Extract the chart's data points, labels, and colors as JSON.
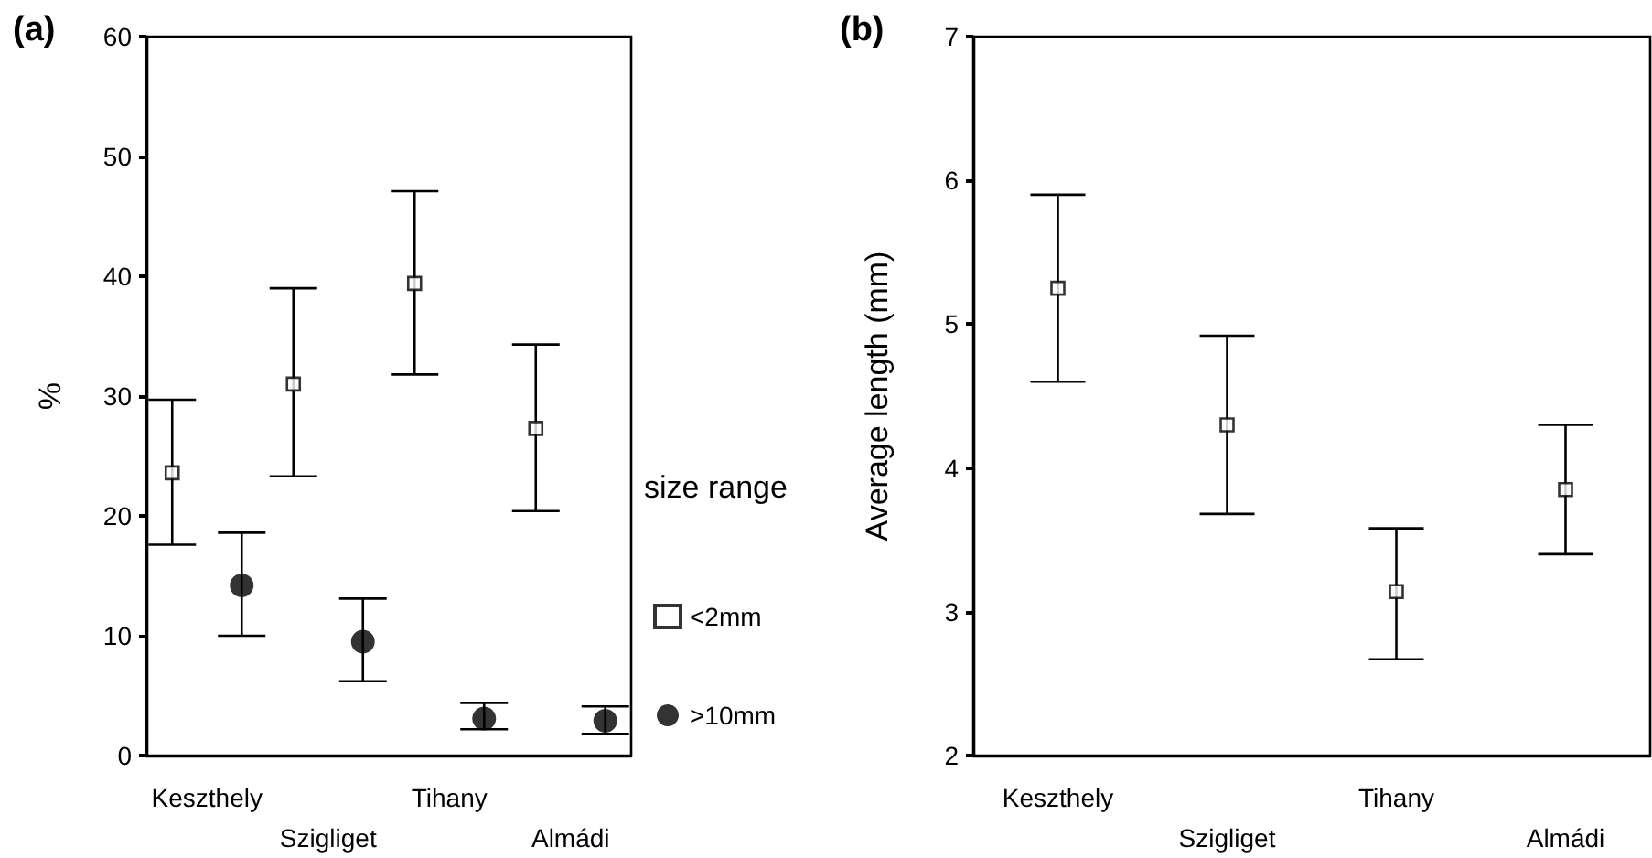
{
  "chart_data": [
    {
      "type": "scatter",
      "title": "(a)",
      "ylabel": "%",
      "legend_title": "size range",
      "legend": "right",
      "grid": false,
      "categories": [
        "Keszthely",
        "Szigliget",
        "Tihany",
        "Almádi"
      ],
      "ylim": [
        0,
        60
      ],
      "yticks": [
        0,
        10,
        20,
        30,
        40,
        50,
        60
      ],
      "series": [
        {
          "name": "<2mm",
          "color": "#000000",
          "marker": "square",
          "values": [
            23.6,
            31.0,
            39.4,
            27.3
          ],
          "errors": [
            [
              17.6,
              29.7
            ],
            [
              23.3,
              39.0
            ],
            [
              31.8,
              47.1
            ],
            [
              20.4,
              34.3
            ]
          ]
        },
        {
          "name": ">10mm",
          "color": "#000000",
          "marker": "circle",
          "values": [
            14.2,
            9.5,
            3.1,
            2.9
          ],
          "errors": [
            [
              10.0,
              18.6
            ],
            [
              6.2,
              13.1
            ],
            [
              2.2,
              4.4
            ],
            [
              1.8,
              4.1
            ]
          ]
        }
      ]
    },
    {
      "type": "scatter",
      "title": "(b)",
      "ylabel": "Average length (mm)",
      "legend": false,
      "grid": false,
      "categories": [
        "Keszthely",
        "Szigliget",
        "Tihany",
        "Almádi"
      ],
      "ylim": [
        2,
        7
      ],
      "yticks": [
        2,
        3,
        4,
        5,
        6,
        7
      ],
      "series": [
        {
          "color": "#000000",
          "marker": "square",
          "values": [
            5.25,
            4.3,
            3.14,
            3.85
          ],
          "errors": [
            [
              4.6,
              5.9
            ],
            [
              3.68,
              4.92
            ],
            [
              2.67,
              3.58
            ],
            [
              3.4,
              4.3
            ]
          ]
        }
      ]
    }
  ]
}
